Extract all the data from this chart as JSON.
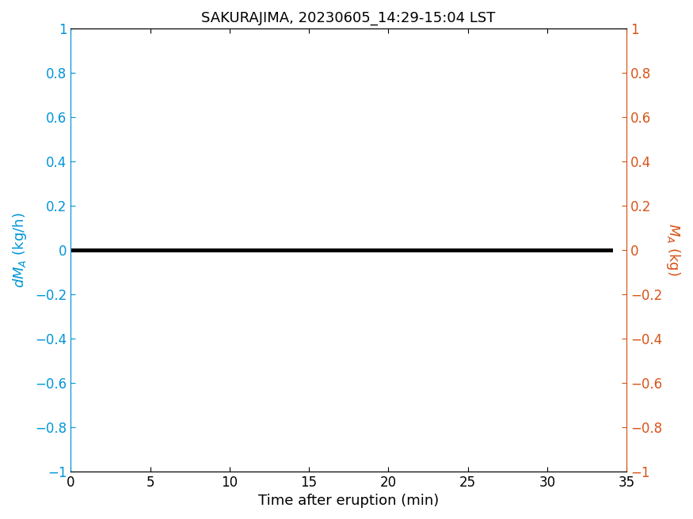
{
  "title": "SAKURAJIMA, 20230605_14:29-15:04 LST",
  "xlabel": "Time after eruption (min)",
  "xlim": [
    0,
    35
  ],
  "ylim": [
    -1,
    1
  ],
  "xticks": [
    0,
    5,
    10,
    15,
    20,
    25,
    30,
    35
  ],
  "yticks": [
    -1,
    -0.8,
    -0.6,
    -0.4,
    -0.2,
    0,
    0.2,
    0.4,
    0.6,
    0.8,
    1
  ],
  "ytick_labels": [
    "−1",
    "−0.8",
    "−0.6",
    "−0.4",
    "−0.2",
    "0",
    "0.2",
    "0.4",
    "0.6",
    "0.8",
    "1"
  ],
  "line_x": [
    0,
    34
  ],
  "line_y": [
    0,
    0
  ],
  "line_color": "#000000",
  "line_width": 3.5,
  "left_axis_color": "#0095D9",
  "right_axis_color": "#D95319",
  "title_fontsize": 13,
  "label_fontsize": 13,
  "tick_fontsize": 12,
  "background_color": "#ffffff"
}
